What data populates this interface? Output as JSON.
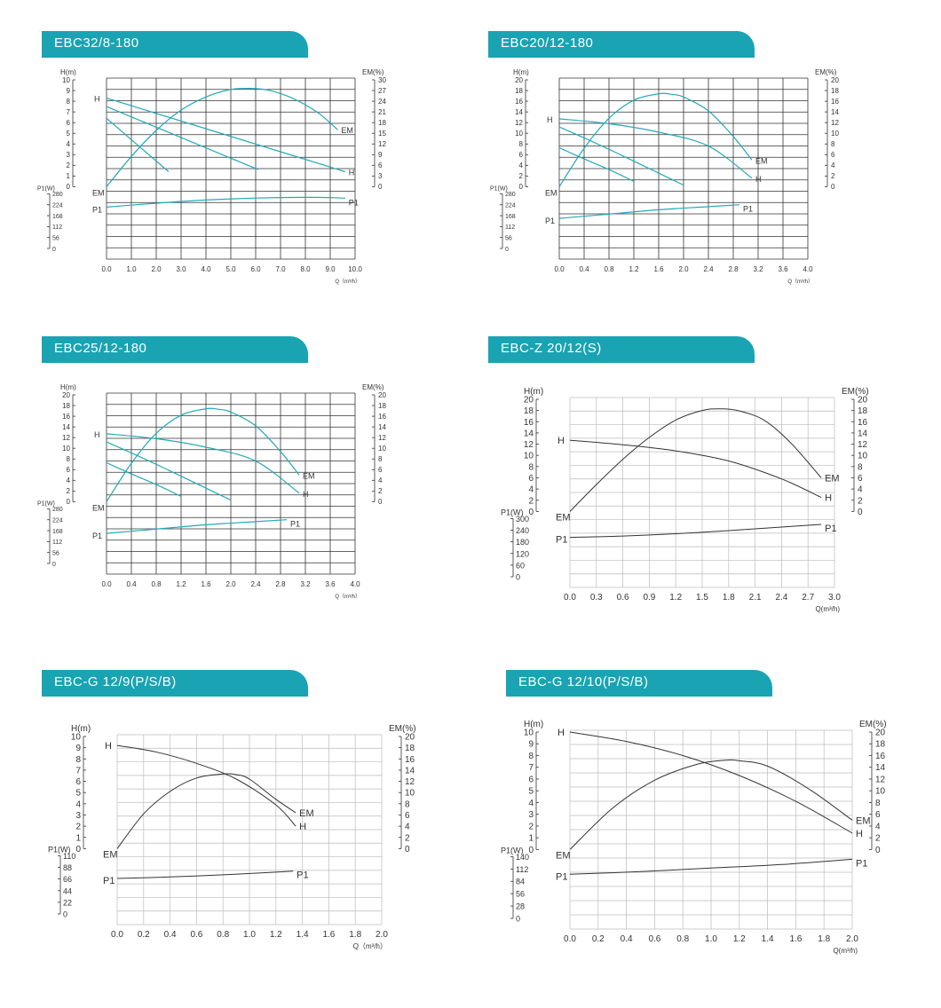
{
  "colors": {
    "teal": "#1aa3b3",
    "curve_teal": "#23a9b8",
    "curve_dark": "#333333",
    "grid": "#333333",
    "grid_light": "#bbbbbb"
  },
  "chart_data": [
    {
      "type": "line",
      "title": "EBC32/8-180",
      "xlabel": "Q（m³/h）",
      "x_ticks": [
        "0.0",
        "1.0",
        "2.0",
        "3.0",
        "4.0",
        "5.0",
        "6.0",
        "7.0",
        "8.0",
        "9.0",
        "10.0"
      ],
      "xlim": [
        0,
        10
      ],
      "h_axis": {
        "label": "H(m)",
        "ticks": [
          "10",
          "9",
          "8",
          "7",
          "6",
          "5",
          "4",
          "3",
          "2",
          "1",
          "0"
        ],
        "lim": [
          0,
          10
        ]
      },
      "em_axis": {
        "label": "EM(%)",
        "ticks": [
          "30",
          "27",
          "24",
          "21",
          "18",
          "15",
          "12",
          "9",
          "6",
          "3",
          "0"
        ],
        "lim": [
          0,
          30
        ]
      },
      "p1_axis": {
        "label": "P1(W)",
        "ticks": [
          "280",
          "224",
          "168",
          "112",
          "56",
          "0"
        ],
        "lim": [
          0,
          280
        ]
      },
      "curve_labels": {
        "H": "H",
        "EM": "EM",
        "P1": "P1"
      },
      "series": [
        {
          "name": "H",
          "axis": "h",
          "x": [
            0,
            9.6
          ],
          "y": [
            8.3,
            1.4
          ]
        },
        {
          "name": "H",
          "axis": "h",
          "x": [
            0,
            6.1
          ],
          "y": [
            7.5,
            1.6
          ]
        },
        {
          "name": "H",
          "axis": "h",
          "x": [
            0,
            2.5
          ],
          "y": [
            6.4,
            1.4
          ]
        },
        {
          "name": "EM",
          "axis": "em",
          "x": [
            0,
            1,
            2,
            3,
            4,
            5,
            5.7,
            6.5,
            7.5,
            8.5,
            9.3
          ],
          "y": [
            0,
            8.5,
            15.8,
            21.5,
            25.2,
            27.3,
            27.6,
            27.1,
            24.8,
            20.8,
            16
          ]
        },
        {
          "name": "P1",
          "axis": "p1",
          "x": [
            0,
            2,
            4,
            6,
            8,
            9.2,
            9.6
          ],
          "y": [
            212,
            232,
            248,
            258,
            262,
            260,
            257
          ]
        }
      ]
    },
    {
      "type": "line",
      "title": "EBC20/12-180",
      "xlabel": "Q（m³/h）",
      "x_ticks": [
        "0.0",
        "0.4",
        "0.8",
        "1.2",
        "1.6",
        "2.0",
        "2.4",
        "2.8",
        "3.2",
        "3.6",
        "4.0"
      ],
      "xlim": [
        0,
        4
      ],
      "h_axis": {
        "label": "H(m)",
        "ticks": [
          "20",
          "18",
          "16",
          "14",
          "12",
          "10",
          "8",
          "6",
          "4",
          "2",
          "0"
        ],
        "lim": [
          0,
          20
        ]
      },
      "em_axis": {
        "label": "EM(%)",
        "ticks": [
          "20",
          "18",
          "16",
          "14",
          "12",
          "10",
          "8",
          "6",
          "4",
          "2",
          "0"
        ],
        "lim": [
          0,
          20
        ]
      },
      "p1_axis": {
        "label": "P1(W)",
        "ticks": [
          "280",
          "224",
          "168",
          "112",
          "56",
          "0"
        ],
        "lim": [
          0,
          280
        ]
      },
      "curve_labels": {
        "H": "H",
        "EM": "EM",
        "P1": "P1"
      },
      "series": [
        {
          "name": "H",
          "axis": "h",
          "x": [
            0,
            0.8,
            1.6,
            2.4,
            3.1
          ],
          "y": [
            12.7,
            11.8,
            10.2,
            7.6,
            1.6
          ]
        },
        {
          "name": "H",
          "axis": "h",
          "x": [
            0,
            0.5,
            1.0,
            1.5,
            2.0
          ],
          "y": [
            11.2,
            8.6,
            5.9,
            3.1,
            0.3
          ]
        },
        {
          "name": "H",
          "axis": "h",
          "x": [
            0,
            0.4,
            0.8,
            1.2
          ],
          "y": [
            7.3,
            5.2,
            3.2,
            1.0
          ]
        },
        {
          "name": "EM",
          "axis": "em",
          "x": [
            0,
            0.4,
            0.8,
            1.2,
            1.6,
            1.8,
            2.0,
            2.4,
            2.8,
            3.1
          ],
          "y": [
            0,
            7.2,
            12.8,
            16.2,
            17.4,
            17.3,
            16.8,
            14.2,
            9.4,
            5
          ]
        },
        {
          "name": "P1",
          "axis": "p1",
          "x": [
            0,
            0.8,
            1.6,
            2.4,
            2.9
          ],
          "y": [
            154,
            176,
            198,
            214,
            224
          ]
        }
      ]
    },
    {
      "type": "line",
      "title": "EBC25/12-180",
      "xlabel": "Q（m³/h）",
      "x_ticks": [
        "0.0",
        "0.4",
        "0.8",
        "1.2",
        "1.6",
        "2.0",
        "2.4",
        "2.8",
        "3.2",
        "3.6",
        "4.0"
      ],
      "xlim": [
        0,
        4
      ],
      "h_axis": {
        "label": "H(m)",
        "ticks": [
          "20",
          "18",
          "16",
          "14",
          "12",
          "10",
          "8",
          "6",
          "4",
          "2",
          "0"
        ],
        "lim": [
          0,
          20
        ]
      },
      "em_axis": {
        "label": "EM(%)",
        "ticks": [
          "20",
          "18",
          "16",
          "14",
          "12",
          "10",
          "8",
          "6",
          "4",
          "2",
          "0"
        ],
        "lim": [
          0,
          20
        ]
      },
      "p1_axis": {
        "label": "P1(W)",
        "ticks": [
          "280",
          "224",
          "168",
          "112",
          "56",
          "0"
        ],
        "lim": [
          0,
          280
        ]
      },
      "curve_labels": {
        "H": "H",
        "EM": "EM",
        "P1": "P1"
      },
      "series": [
        {
          "name": "H",
          "axis": "h",
          "x": [
            0,
            0.8,
            1.6,
            2.4,
            3.1
          ],
          "y": [
            12.7,
            11.8,
            10.2,
            7.6,
            1.6
          ]
        },
        {
          "name": "H",
          "axis": "h",
          "x": [
            0,
            0.5,
            1.0,
            1.5,
            2.0
          ],
          "y": [
            11.2,
            8.6,
            5.9,
            3.1,
            0.3
          ]
        },
        {
          "name": "H",
          "axis": "h",
          "x": [
            0,
            0.4,
            0.8,
            1.2
          ],
          "y": [
            7.3,
            5.2,
            3.2,
            1.0
          ]
        },
        {
          "name": "EM",
          "axis": "em",
          "x": [
            0,
            0.4,
            0.8,
            1.2,
            1.6,
            1.8,
            2.0,
            2.4,
            2.8,
            3.1
          ],
          "y": [
            0,
            7.2,
            12.8,
            16.2,
            17.4,
            17.3,
            16.8,
            14.2,
            9.4,
            5
          ]
        },
        {
          "name": "P1",
          "axis": "p1",
          "x": [
            0,
            0.8,
            1.6,
            2.4,
            2.9
          ],
          "y": [
            154,
            176,
            198,
            214,
            224
          ]
        }
      ]
    },
    {
      "type": "line",
      "title": "EBC-Z 20/12(S)",
      "xlabel": "Q(m³/h)",
      "x_ticks": [
        "0.0",
        "0.3",
        "0.6",
        "0.9",
        "1.2",
        "1.5",
        "1.8",
        "2.1",
        "2.4",
        "2.7",
        "3.0"
      ],
      "xlim": [
        0,
        3
      ],
      "h_axis": {
        "label": "H(m)",
        "ticks": [
          "20",
          "18",
          "16",
          "14",
          "12",
          "10",
          "8",
          "6",
          "4",
          "2",
          "0"
        ],
        "lim": [
          0,
          20
        ]
      },
      "em_axis": {
        "label": "EM(%)",
        "ticks": [
          "20",
          "18",
          "16",
          "14",
          "12",
          "10",
          "8",
          "6",
          "4",
          "2",
          "0"
        ],
        "lim": [
          0,
          20
        ]
      },
      "p1_axis": {
        "label": "P1(W)",
        "ticks": [
          "300",
          "240",
          "180",
          "120",
          "60",
          "0"
        ],
        "lim": [
          0,
          300
        ]
      },
      "curve_labels": {
        "H": "H",
        "EM": "EM",
        "P1": "P1"
      },
      "series": [
        {
          "name": "H",
          "axis": "h",
          "x": [
            0,
            0.6,
            1.2,
            1.8,
            2.4,
            2.85
          ],
          "y": [
            12.7,
            11.9,
            10.8,
            9.0,
            5.8,
            2.5
          ]
        },
        {
          "name": "EM",
          "axis": "em",
          "x": [
            0,
            0.3,
            0.6,
            0.9,
            1.2,
            1.5,
            1.7,
            1.9,
            2.2,
            2.5,
            2.85
          ],
          "y": [
            0,
            4.8,
            9.3,
            13.2,
            16.3,
            18.0,
            18.3,
            18.0,
            16.3,
            12.3,
            6
          ]
        },
        {
          "name": "P1",
          "axis": "p1",
          "x": [
            0,
            0.6,
            1.2,
            1.8,
            2.4,
            2.85
          ],
          "y": [
            203,
            210,
            222,
            238,
            256,
            270
          ]
        }
      ]
    },
    {
      "type": "line",
      "title": "EBC-G 12/9(P/S/B)",
      "xlabel": "Q（m³/h）",
      "x_ticks": [
        "0.0",
        "0.2",
        "0.4",
        "0.6",
        "0.8",
        "1.0",
        "1.2",
        "1.4",
        "1.6",
        "1.8",
        "2.0"
      ],
      "xlim": [
        0,
        2
      ],
      "h_axis": {
        "label": "H(m)",
        "ticks": [
          "10",
          "9",
          "8",
          "7",
          "6",
          "5",
          "4",
          "3",
          "2",
          "1",
          "0"
        ],
        "lim": [
          0,
          10
        ]
      },
      "em_axis": {
        "label": "EM(%)",
        "ticks": [
          "20",
          "18",
          "16",
          "14",
          "12",
          "10",
          "8",
          "6",
          "4",
          "2",
          "0"
        ],
        "lim": [
          0,
          20
        ]
      },
      "p1_axis": {
        "label": "P1(W)",
        "ticks": [
          "110",
          "88",
          "66",
          "44",
          "22",
          "0"
        ],
        "lim": [
          0,
          110
        ]
      },
      "curve_labels": {
        "H": "H",
        "EM": "EM",
        "P1": "P1"
      },
      "series": [
        {
          "name": "H",
          "axis": "h",
          "x": [
            0,
            0.3,
            0.6,
            0.9,
            1.2,
            1.35
          ],
          "y": [
            9.2,
            8.6,
            7.6,
            6.2,
            3.9,
            2.0
          ]
        },
        {
          "name": "EM",
          "axis": "em",
          "x": [
            0,
            0.2,
            0.4,
            0.6,
            0.8,
            0.9,
            1.0,
            1.2,
            1.35
          ],
          "y": [
            0,
            6.2,
            10.2,
            12.6,
            13.3,
            13.2,
            12.4,
            8.8,
            6.4
          ]
        },
        {
          "name": "P1",
          "axis": "p1",
          "x": [
            0,
            0.4,
            0.8,
            1.2,
            1.33
          ],
          "y": [
            67,
            70,
            74,
            79,
            81
          ]
        }
      ]
    },
    {
      "type": "line",
      "title": "EBC-G 12/10(P/S/B)",
      "xlabel": "Q(m³/h)",
      "x_ticks": [
        "0.0",
        "0.2",
        "0.4",
        "0.6",
        "0.8",
        "1.0",
        "1.2",
        "1.4",
        "1.6",
        "1.8",
        "2.0"
      ],
      "xlim": [
        0,
        2
      ],
      "h_axis": {
        "label": "H(m)",
        "ticks": [
          "10",
          "9",
          "8",
          "7",
          "6",
          "5",
          "4",
          "3",
          "2",
          "1",
          "0"
        ],
        "lim": [
          0,
          10
        ]
      },
      "em_axis": {
        "label": "EM(%)",
        "ticks": [
          "20",
          "18",
          "16",
          "14",
          "12",
          "10",
          "8",
          "6",
          "4",
          "2",
          "0"
        ],
        "lim": [
          0,
          20
        ]
      },
      "p1_axis": {
        "label": "P1(W)",
        "ticks": [
          "140",
          "112",
          "84",
          "56",
          "28",
          "0"
        ],
        "lim": [
          0,
          140
        ]
      },
      "curve_labels": {
        "H": "H",
        "EM": "EM",
        "P1": "P1"
      },
      "series": [
        {
          "name": "H",
          "axis": "h",
          "x": [
            0,
            0.4,
            0.8,
            1.2,
            1.6,
            2.0
          ],
          "y": [
            10.0,
            9.2,
            8.0,
            6.3,
            4.1,
            1.4
          ]
        },
        {
          "name": "EM",
          "axis": "em",
          "x": [
            0,
            0.3,
            0.6,
            0.9,
            1.1,
            1.2,
            1.4,
            1.7,
            2.0
          ],
          "y": [
            0,
            7.0,
            11.8,
            14.5,
            15.2,
            15.1,
            14.2,
            10.2,
            5.0
          ]
        },
        {
          "name": "P1",
          "axis": "p1",
          "x": [
            0,
            0.5,
            1.0,
            1.5,
            2.0
          ],
          "y": [
            100,
            106,
            114,
            122,
            134
          ]
        }
      ]
    }
  ]
}
